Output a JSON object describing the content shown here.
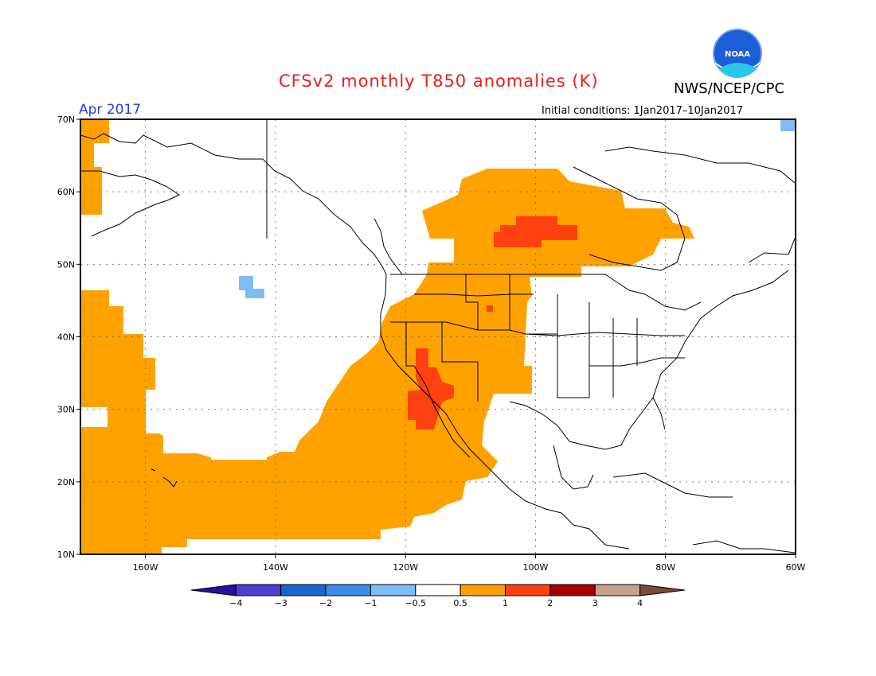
{
  "title": "CFSv2 monthly T850 anomalies (K)",
  "agency": "NWS/NCEP/CPC",
  "logo_text": "NOAA",
  "period": "Apr 2017",
  "initial_conditions": "Initial conditions: 1Jan2017–10Jan2017",
  "map": {
    "lon_range": [
      -170,
      -60
    ],
    "lat_range": [
      10,
      70
    ],
    "lat_ticks": [
      {
        "value": 70,
        "label": "70N"
      },
      {
        "value": 60,
        "label": "60N"
      },
      {
        "value": 50,
        "label": "50N"
      },
      {
        "value": 40,
        "label": "40N"
      },
      {
        "value": 30,
        "label": "30N"
      },
      {
        "value": 20,
        "label": "20N"
      },
      {
        "value": 10,
        "label": "10N"
      }
    ],
    "lon_ticks": [
      {
        "value": -160,
        "label": "160W"
      },
      {
        "value": -140,
        "label": "140W"
      },
      {
        "value": -120,
        "label": "120W"
      },
      {
        "value": -100,
        "label": "100W"
      },
      {
        "value": -80,
        "label": "80W"
      },
      {
        "value": -60,
        "label": "60W"
      }
    ],
    "grid": "dotted"
  },
  "colorbar": {
    "labels": [
      "−4",
      "−3",
      "−2",
      "−1",
      "−0.5",
      "0.5",
      "1",
      "2",
      "3",
      "4"
    ],
    "colors": [
      "#2a0fa0",
      "#4a3fd0",
      "#1d63d0",
      "#3d8ee8",
      "#7fbcf4",
      "#ffffff",
      "#ffa200",
      "#ff4010",
      "#a80000",
      "#c8a090",
      "#7a4a3a"
    ]
  },
  "legend_colors": {
    "weak_positive": "#ffa200",
    "moderate_positive": "#ff4010",
    "weak_negative": "#7fbcf4"
  }
}
